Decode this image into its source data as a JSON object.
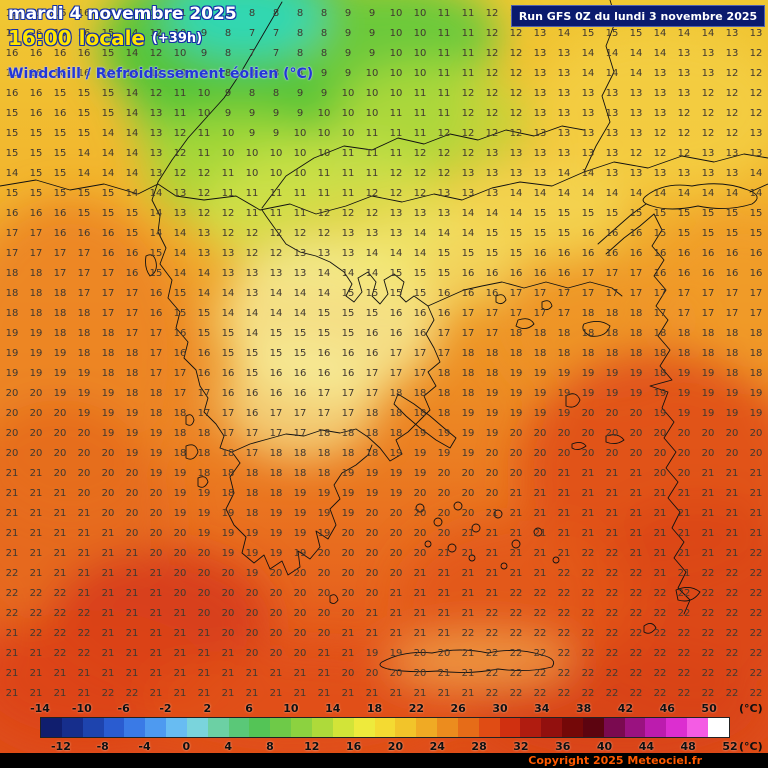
{
  "header": {
    "date": "mardi 4 novembre 2025",
    "time": "16:00 locale",
    "offset": "(+39h)",
    "variable": "Windchill / Refroidissement éolien (°C)",
    "run": "Run GFS 0Z du lundi 3 novembre 2025"
  },
  "footer": {
    "copyright": "Copyright 2025 Meteociel.fr"
  },
  "scale": {
    "unit": "(°C)",
    "min": -14,
    "max": 52,
    "top_labels": [
      -14,
      -10,
      -6,
      -2,
      2,
      6,
      10,
      14,
      18,
      22,
      26,
      30,
      34,
      38,
      42,
      46,
      50
    ],
    "bottom_labels": [
      -12,
      -8,
      -4,
      0,
      4,
      8,
      12,
      16,
      20,
      24,
      28,
      32,
      36,
      40,
      44,
      48,
      52
    ],
    "colors": [
      "#101e6e",
      "#162e8c",
      "#1e44ae",
      "#2a5cd0",
      "#3a7ae6",
      "#4e9af0",
      "#68bcf2",
      "#7ad4dc",
      "#6cd0a4",
      "#5ac878",
      "#54c456",
      "#6eca48",
      "#8cd240",
      "#aeda3a",
      "#d2e438",
      "#eeea3c",
      "#f4da32",
      "#f2c42a",
      "#f0aa24",
      "#ec8c1e",
      "#e66c18",
      "#e04c14",
      "#d03010",
      "#b01c10",
      "#92100e",
      "#740808",
      "#5c0410",
      "#7a0a50",
      "#9a1280",
      "#bc1cae",
      "#dc2ed0",
      "#f45ce4",
      "#ffffff"
    ]
  },
  "map": {
    "grid_rows": [
      "15 15 16 16 15 14 13 11 9 8 8 8 8 8 9 9 10 10 11 11 12 12 13 14 15 15 15 14 14 14 14 13",
      "15 16 16 16 15 14 12 10 9 8 7 7 8 8 9 9 10 10 11 11 12 12 13 14 15 15 15 14 14 14 13 13",
      "16 16 16 16 15 14 12 10 9 8 7 7 8 8 9 9 10 10 11 11 12 12 13 13 14 14 14 14 13 13 13 12",
      "16 16 16 16 15 14 12 10 9 8 8 8 8 9 9 10 10 10 11 11 12 12 13 13 14 14 14 13 13 13 12 12",
      "16 16 15 15 15 14 12 11 10 9 8 8 9 9 10 10 10 11 11 12 12 12 13 13 13 13 13 13 13 12 12 12",
      "15 16 16 15 15 14 13 11 10 9 9 9 9 10 10 10 11 11 11 12 12 12 13 13 13 13 13 13 12 12 12 12",
      "15 15 15 15 14 14 13 12 11 10 9 9 10 10 10 11 11 11 12 12 12 12 13 13 13 13 13 12 12 12 12 13",
      "15 15 15 14 14 14 13 12 11 10 10 10 10 10 11 11 11 12 12 12 13 13 13 13 13 13 12 12 12 13 13 13",
      "14 15 15 14 14 14 13 12 12 11 10 10 10 11 11 11 12 12 12 13 13 13 13 14 14 13 13 13 13 13 13 14",
      "15 15 15 15 15 14 14 13 12 11 11 11 11 11 11 12 12 12 13 13 13 14 14 14 14 14 14 14 14 14 14 14",
      "16 16 16 15 15 15 14 13 12 12 11 11 11 12 12 12 13 13 13 14 14 14 15 15 15 15 15 15 15 15 15 15",
      "17 17 16 16 16 15 14 14 13 12 12 12 12 12 13 13 13 14 14 14 15 15 15 15 16 16 16 15 15 15 15 15",
      "17 17 17 17 16 16 15 14 13 13 12 12 13 13 13 14 14 14 15 15 15 15 16 16 16 16 16 16 16 16 16 16",
      "18 18 17 17 17 16 15 14 14 13 13 13 13 14 14 14 15 15 15 16 16 16 16 16 17 17 17 16 16 16 16 16",
      "18 18 18 17 17 17 16 15 14 14 13 14 14 14 15 15 15 15 16 16 16 17 17 17 17 17 17 17 17 17 17 17",
      "18 18 18 18 17 17 16 15 15 14 14 14 14 15 15 15 16 16 16 17 17 17 17 17 18 18 18 17 17 17 17 17",
      "19 19 18 18 18 17 17 16 15 15 14 15 15 15 15 16 16 16 17 17 17 18 18 18 18 18 18 18 18 18 18 18",
      "19 19 19 18 18 18 17 16 16 15 15 15 15 16 16 16 17 17 17 18 18 18 18 18 18 18 18 18 18 18 18 18",
      "19 19 19 19 18 18 17 17 16 16 15 16 16 16 16 17 17 17 18 18 18 19 19 19 19 19 19 18 19 19 18 18",
      "20 20 19 19 19 18 18 17 17 16 16 16 16 17 17 17 18 18 18 18 19 19 19 19 19 19 19 19 19 19 19 19",
      "20 20 20 19 19 19 18 18 17 17 16 17 17 17 17 18 18 18 18 19 19 19 19 19 20 20 20 19 19 19 19 19",
      "20 20 20 20 19 19 19 18 18 17 17 17 17 18 18 18 18 19 19 19 19 20 20 20 20 20 20 20 20 20 20 20",
      "20 20 20 20 20 19 19 18 18 18 17 18 18 18 18 18 19 19 19 19 20 20 20 20 20 20 20 20 20 20 20 20",
      "21 21 20 20 20 20 19 19 18 18 18 18 18 18 19 19 19 19 20 20 20 20 20 21 21 21 21 20 20 21 21 21",
      "21 21 21 20 20 20 20 19 19 18 18 18 19 19 19 19 19 20 20 20 20 21 21 21 21 21 21 21 21 21 21 21",
      "21 21 21 21 20 20 20 19 19 19 18 19 19 19 19 20 20 20 20 20 21 21 21 21 21 21 21 21 21 21 21 21",
      "21 21 21 21 21 20 20 20 19 19 19 19 19 19 20 20 20 20 20 21 21 21 21 21 21 21 21 21 21 21 21 21",
      "21 21 21 21 21 21 20 20 20 19 19 19 19 20 20 20 20 20 21 21 21 21 21 21 22 22 21 21 21 21 21 22",
      "22 21 21 21 21 21 21 20 20 20 19 20 20 20 20 20 20 21 21 21 21 21 21 22 22 22 22 21 21 22 22 22",
      "22 22 22 21 21 21 21 20 20 20 20 20 20 20 20 20 21 21 21 21 21 22 22 22 22 22 22 22 22 22 22 22",
      "22 22 22 22 21 21 21 21 20 20 20 20 20 20 20 21 21 21 21 21 22 22 22 22 22 22 22 22 22 22 22 22",
      "21 22 22 22 21 21 21 21 21 20 20 20 20 20 21 21 21 21 21 22 22 22 22 22 22 22 22 22 22 22 22 22",
      "21 21 22 22 21 21 21 21 21 21 20 20 20 21 21 19 19 20 20 21 22 22 22 22 22 22 22 22 22 22 22 22",
      "21 21 21 21 21 21 21 21 21 21 21 21 21 21 20 20 20 20 21 21 22 22 22 22 22 22 22 22 22 22 22 22",
      "21 21 21 21 22 22 21 21 21 21 21 21 21 21 21 21 21 21 21 21 22 22 22 22 22 22 22 22 22 22 22 22"
    ]
  }
}
